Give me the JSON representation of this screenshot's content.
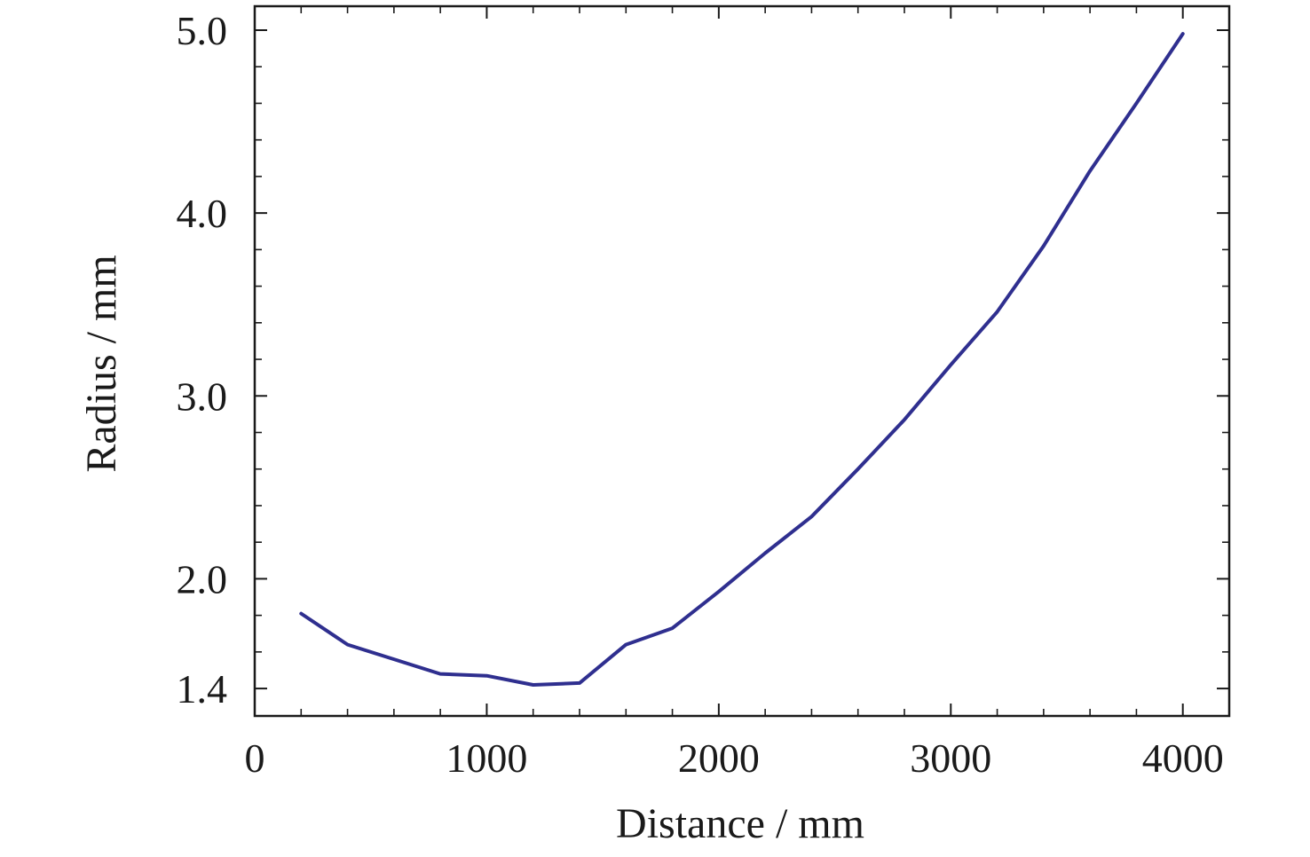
{
  "chart_data": {
    "type": "line",
    "title": "",
    "xlabel": "Distance / mm",
    "ylabel": "Radius / mm",
    "xlim": [
      0,
      4200
    ],
    "ylim": [
      1.25,
      5.0
    ],
    "x_ticks": [
      0,
      1000,
      2000,
      3000,
      4000
    ],
    "x_tick_labels": [
      "0",
      "1000",
      "2000",
      "3000",
      "4000"
    ],
    "y_ticks": [
      1.4,
      2.0,
      3.0,
      4.0,
      5.0
    ],
    "y_tick_labels": [
      "1.4",
      "2.0",
      "3.0",
      "4.0",
      "5.0"
    ],
    "grid": false,
    "line_color": "#2f2f8f",
    "series": [
      {
        "x": [
          200,
          400,
          600,
          800,
          1000,
          1200,
          1400,
          1600,
          1800,
          2000,
          2200,
          2400,
          2600,
          2800,
          3000,
          3200,
          3400,
          3600,
          3800,
          4000
        ],
        "values": [
          1.81,
          1.64,
          1.56,
          1.48,
          1.47,
          1.42,
          1.43,
          1.64,
          1.73,
          1.93,
          2.14,
          2.34,
          2.6,
          2.87,
          3.17,
          3.46,
          3.82,
          4.23,
          4.6,
          4.98
        ]
      }
    ]
  }
}
